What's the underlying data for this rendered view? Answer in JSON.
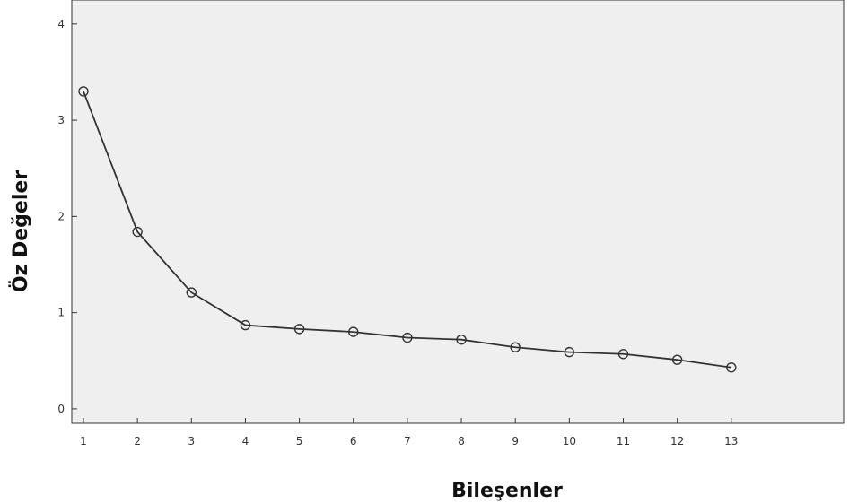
{
  "chart_data": {
    "type": "line",
    "title": "",
    "xlabel": "Bileşenler",
    "ylabel": "Öz Değeler",
    "x": [
      1,
      2,
      3,
      4,
      5,
      6,
      7,
      8,
      9,
      10,
      11,
      12,
      13
    ],
    "series": [
      {
        "values": [
          3.3,
          1.84,
          1.21,
          0.87,
          0.83,
          0.8,
          0.74,
          0.72,
          0.64,
          0.59,
          0.57,
          0.51,
          0.43
        ]
      }
    ],
    "xlim": [
      0,
      14
    ],
    "ylim": [
      -0.15,
      4.25
    ],
    "yticks": [
      0,
      1,
      2,
      3,
      4
    ],
    "xticks": [
      1,
      2,
      3,
      4,
      5,
      6,
      7,
      8,
      9,
      10,
      11,
      12,
      13
    ],
    "grid": false,
    "legend": "none",
    "colors": {
      "plot_background": "#efefef",
      "line": "#333333",
      "marker_edge": "#333333"
    }
  }
}
